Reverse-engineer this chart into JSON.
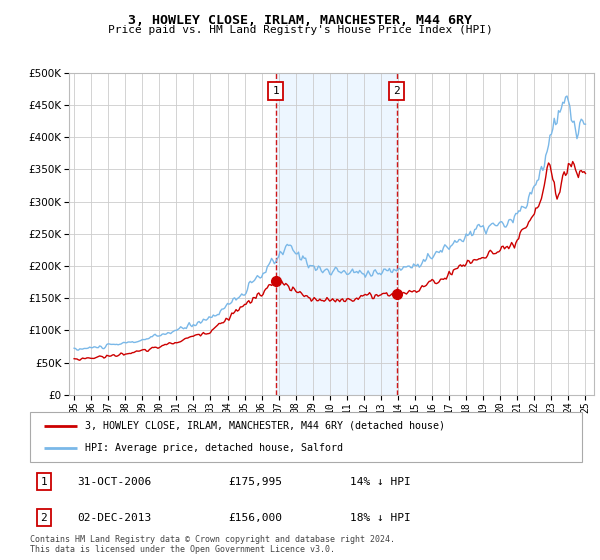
{
  "title": "3, HOWLEY CLOSE, IRLAM, MANCHESTER, M44 6RY",
  "subtitle": "Price paid vs. HM Land Registry's House Price Index (HPI)",
  "legend_line1": "3, HOWLEY CLOSE, IRLAM, MANCHESTER, M44 6RY (detached house)",
  "legend_line2": "HPI: Average price, detached house, Salford",
  "ann1": {
    "num": "1",
    "date": "31-OCT-2006",
    "price": "£175,995",
    "note": "14% ↓ HPI"
  },
  "ann2": {
    "num": "2",
    "date": "02-DEC-2013",
    "price": "£156,000",
    "note": "18% ↓ HPI"
  },
  "footer": "Contains HM Land Registry data © Crown copyright and database right 2024.\nThis data is licensed under the Open Government Licence v3.0.",
  "hpi_color": "#7ab8e8",
  "price_color": "#cc0000",
  "vline_color": "#cc0000",
  "shade_color": "#ddeeff",
  "ylim": [
    0,
    500000
  ],
  "yticks": [
    0,
    50000,
    100000,
    150000,
    200000,
    250000,
    300000,
    350000,
    400000,
    450000,
    500000
  ],
  "sale1_x": 2006.83,
  "sale1_y": 175995,
  "sale2_x": 2013.92,
  "sale2_y": 156000,
  "shade_x1": 2006.83,
  "shade_x2": 2013.92,
  "xlim_left": 1994.7,
  "xlim_right": 2025.5,
  "xtick_start": 1995,
  "xtick_end": 2025
}
